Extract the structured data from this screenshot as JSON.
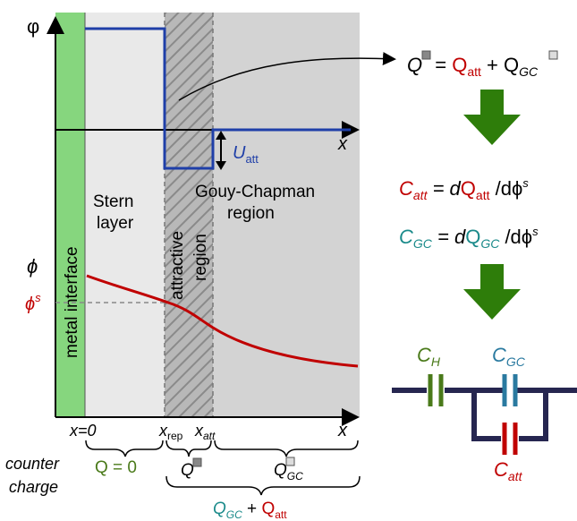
{
  "phi_axis_label": "φ",
  "phi_lower_axis_label": "ϕ",
  "phi_s_label": "ϕ",
  "phi_s_sup": "s",
  "x_axis_label": "x",
  "metal_interface": "metal interface",
  "stern_line1": "Stern",
  "stern_line2": "layer",
  "attractive_line1": "attractive",
  "attractive_line2": "region",
  "gouy_line1": "Gouy-Chapman",
  "gouy_line2": "region",
  "u_att": {
    "main": "U",
    "sub": "att"
  },
  "x0": "x=0",
  "x_rep": {
    "main": "x",
    "sub": "rep"
  },
  "x_att": {
    "main": "x",
    "sub": "att"
  },
  "x_end": "x",
  "counter_line1": "counter",
  "counter_line2": "charge",
  "q_zero": "Q = 0",
  "q_tot": "Q",
  "q_gc": {
    "main": "Q",
    "sub": "GC"
  },
  "sum_q": {
    "a": "Q",
    "a_sub": "GC",
    "plus": " + ",
    "b": "Q",
    "b_sub": "att"
  },
  "eq1": {
    "lhs": "Q",
    "eq": " = ",
    "t1": "Q",
    "t1_sub": "att",
    "plus": " + ",
    "t2": "Q",
    "t2_sub": "GC"
  },
  "eq2": {
    "lhs": "C",
    "lhs_sub": "att",
    "eq": " = d",
    "q": "Q",
    "q_sub": "att",
    "tail": " /dϕ",
    "sup": "s"
  },
  "eq3": {
    "lhs": "C",
    "lhs_sub": "GC",
    "eq": " = d",
    "q": "Q",
    "q_sub": "GC",
    "tail": " /dϕ",
    "sup": "s"
  },
  "c_h": {
    "main": "C",
    "sub": "H"
  },
  "c_gc": {
    "main": "C",
    "sub": "GC"
  },
  "c_att": {
    "main": "C",
    "sub": "att"
  },
  "colors": {
    "red": "#c00000",
    "teal": "#1a8a8a",
    "blue": "#1f3fa8",
    "green": "#4a7a1a",
    "arrow_green": "#2e7d0a",
    "navy": "#262650",
    "cap_blue": "#2a7aa0"
  }
}
